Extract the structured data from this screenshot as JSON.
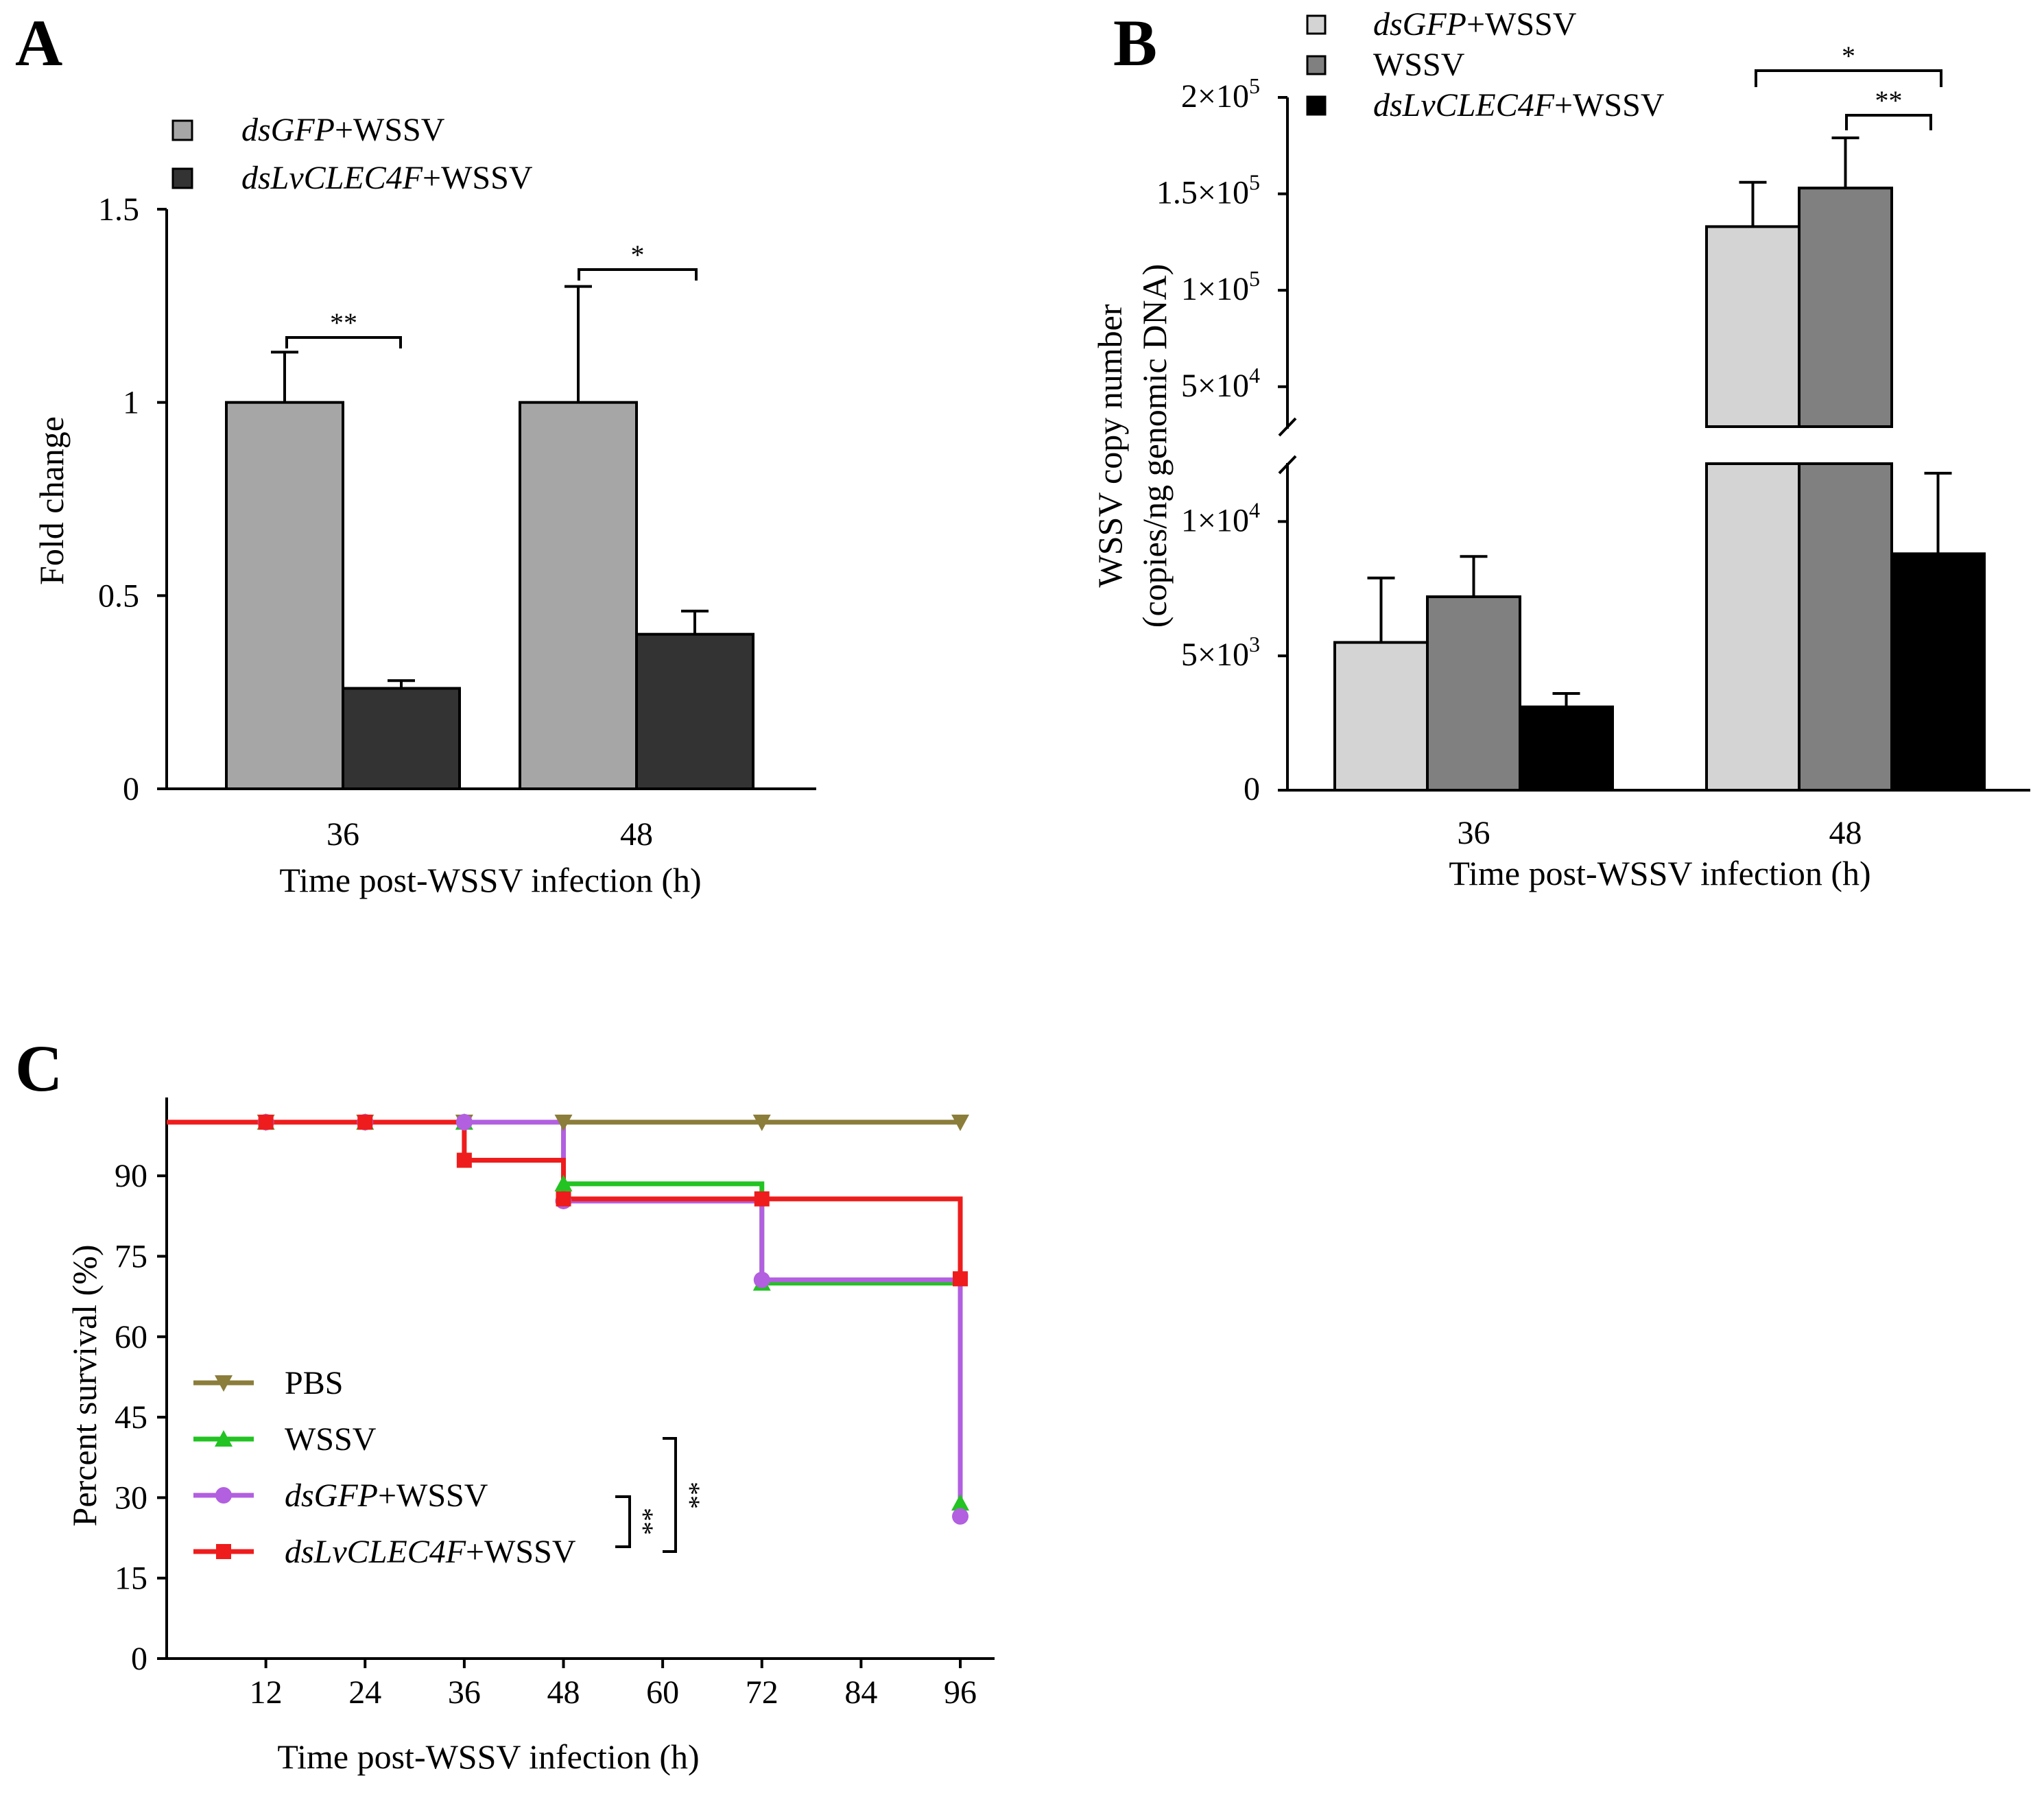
{
  "chart_data": [
    {
      "panel": "A",
      "type": "bar",
      "xlabel": "Time post-WSSV infection (h)",
      "ylabel": "Fold change",
      "ylim": [
        0,
        1.5
      ],
      "yticks": [
        "0",
        "0.5",
        "1",
        "1.5"
      ],
      "categories": [
        "36",
        "48"
      ],
      "legend_position": "top-left",
      "series": [
        {
          "name": "dsGFP+WSSV",
          "name_italic": "dsGFP",
          "name_rest": "+WSSV",
          "color": "#a6a6a6",
          "values": [
            1.0,
            1.0
          ],
          "errors": [
            0.13,
            0.3
          ]
        },
        {
          "name": "dsLvCLEC4F+WSSV",
          "name_italic": "dsLvCLEC4F",
          "name_rest": "+WSSV",
          "color": "#333333",
          "values": [
            0.26,
            0.4
          ],
          "errors": [
            0.02,
            0.06
          ]
        }
      ],
      "significance": [
        "**",
        "*"
      ]
    },
    {
      "panel": "B",
      "type": "bar",
      "xlabel": "Time post-WSSV infection (h)",
      "ylabel_line1": "WSSV copy number",
      "ylabel_line2": "(copies/ng genomic DNA)",
      "ylim": [
        0,
        200000
      ],
      "axis_break": [
        12000,
        30000
      ],
      "ytick_labels": [
        {
          "value": 0,
          "label": "0"
        },
        {
          "value": 5000,
          "label": "5×10",
          "exp": "3"
        },
        {
          "value": 10000,
          "label": "1×10",
          "exp": "4"
        },
        {
          "value": 50000,
          "label": "5×10",
          "exp": "4"
        },
        {
          "value": 100000,
          "label": "1×10",
          "exp": "5"
        },
        {
          "value": 150000,
          "label": "1.5×10",
          "exp": "5"
        },
        {
          "value": 200000,
          "label": "2×10",
          "exp": "5"
        }
      ],
      "categories": [
        "36",
        "48"
      ],
      "legend_position": "top-left",
      "series": [
        {
          "name": "dsGFP+WSSV",
          "name_italic": "dsGFP",
          "name_rest": "+WSSV",
          "color": "#d4d4d4",
          "values": [
            5500,
            133000
          ],
          "errors": [
            2400,
            23000
          ]
        },
        {
          "name": "WSSV",
          "name_italic": "",
          "name_rest": "WSSV",
          "color": "#808080",
          "values": [
            7200,
            153000
          ],
          "errors": [
            1500,
            26000
          ]
        },
        {
          "name": "dsLvCLEC4F+WSSV",
          "name_italic": "dsLvCLEC4F",
          "name_rest": "+WSSV",
          "color": "#000000",
          "values": [
            3100,
            8800
          ],
          "errors": [
            500,
            3000
          ]
        }
      ],
      "significance": [
        "*",
        "**"
      ]
    },
    {
      "panel": "C",
      "type": "line",
      "subtype": "survival-step",
      "xlabel": "Time post-WSSV infection (h)",
      "ylabel": "Percent survival (%)",
      "xticks": [
        "12",
        "24",
        "36",
        "48",
        "60",
        "72",
        "84",
        "96"
      ],
      "yticks": [
        "0",
        "15",
        "30",
        "45",
        "60",
        "75",
        "90"
      ],
      "xlim": [
        0,
        100
      ],
      "ylim": [
        0,
        100
      ],
      "legend_position": "bottom-left",
      "series": [
        {
          "name": "PBS",
          "name_italic": "",
          "name_rest": "PBS",
          "color": "#8b7d3a",
          "marker": "triangle-down",
          "x": [
            0,
            12,
            24,
            36,
            48,
            72,
            96
          ],
          "y": [
            100,
            100,
            100,
            100,
            100,
            100,
            100
          ]
        },
        {
          "name": "WSSV",
          "name_italic": "",
          "name_rest": "WSSV",
          "color": "#22c322",
          "marker": "triangle-up",
          "x": [
            0,
            12,
            24,
            36,
            48,
            72,
            96
          ],
          "y": [
            100,
            100,
            100,
            100,
            88.5,
            70,
            29
          ]
        },
        {
          "name": "dsGFP+WSSV",
          "name_italic": "dsGFP",
          "name_rest": "+WSSV",
          "color": "#b25fe0",
          "marker": "circle",
          "x": [
            0,
            12,
            24,
            36,
            48,
            72,
            96
          ],
          "y": [
            100,
            100,
            100,
            100,
            85.3,
            70.6,
            26.5
          ]
        },
        {
          "name": "dsLvCLEC4F+WSSV",
          "name_italic": "dsLvCLEC4F",
          "name_rest": "+WSSV",
          "color": "#ee1c1c",
          "marker": "square",
          "x": [
            0,
            12,
            24,
            36,
            48,
            72,
            96
          ],
          "y": [
            100,
            100,
            100,
            92.9,
            85.7,
            85.7,
            70.8
          ]
        }
      ],
      "significance": [
        "**",
        "**"
      ]
    }
  ]
}
